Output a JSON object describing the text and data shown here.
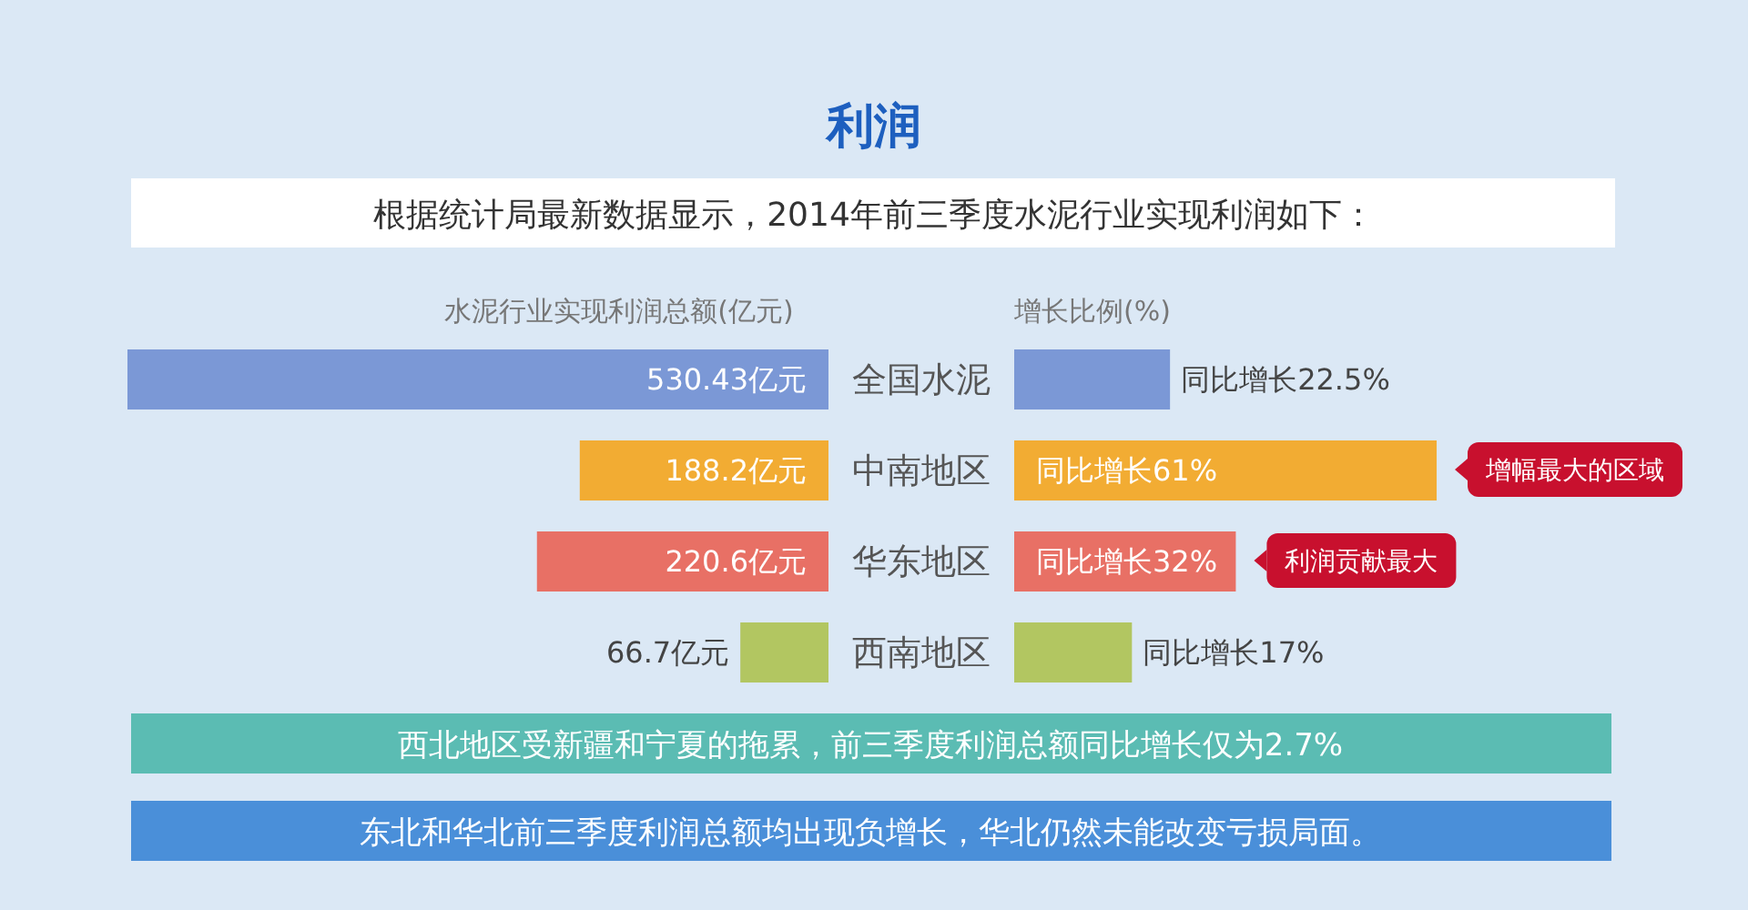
{
  "chart_data": [
    {
      "type": "bar",
      "orientation": "horizontal",
      "title": "利润",
      "subtitle": "根据统计局最新数据显示，2014年前三季度水泥行业实现利润如下：",
      "xlabel": "水泥行业实现利润总额(亿元)",
      "tick_labels": "y",
      "categories": [
        "全国水泥",
        "中南地区",
        "华东地区",
        "西南地区"
      ],
      "values": [
        530.43,
        188.2,
        220.6,
        66.7
      ],
      "colors": [
        "#7b98d6",
        "#f2ac33",
        "#e87065",
        "#b2c661"
      ],
      "value_labels": [
        "530.43亿元",
        "188.2亿元",
        "220.6亿元",
        "66.7亿元"
      ]
    },
    {
      "type": "bar",
      "orientation": "horizontal",
      "xlabel": "增长比例(%)",
      "tick_labels": false,
      "categories": [
        null,
        null,
        null,
        null
      ],
      "values": [
        22.5,
        61,
        32,
        17
      ],
      "colors": [
        "#7b98d6",
        "#f2ac33",
        "#e87065",
        "#b2c661"
      ],
      "value_labels": [
        "同比增长22.5%",
        "同比增长61%",
        "同比增长32%",
        "同比增长17%"
      ],
      "annotations": [
        {
          "text": "增幅最大的区域",
          "x": 61
        },
        {
          "text": "利润贡献最大",
          "x": 32
        },
        "西北地区受新疆和宁夏的拖累，前三季度利润总额同比增长仅为2.7%",
        "东北和华北前三季度利润总额均出现负增长，华北仍然未能改变亏损局面。"
      ]
    }
  ]
}
